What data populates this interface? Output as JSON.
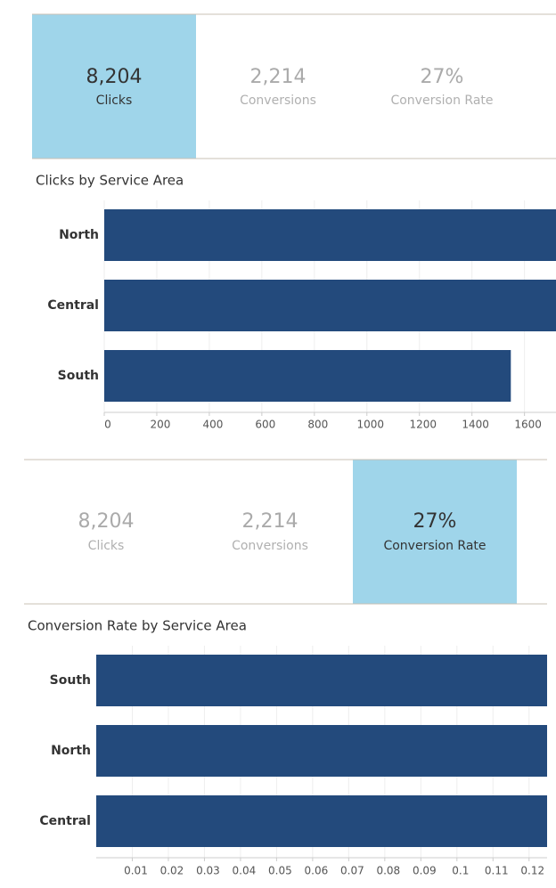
{
  "kpi_panels": [
    {
      "tiles": [
        {
          "value": "8,204",
          "label": "Clicks",
          "selected": true
        },
        {
          "value": "2,214",
          "label": "Conversions",
          "selected": false
        },
        {
          "value": "27%",
          "label": "Conversion Rate",
          "selected": false
        }
      ]
    },
    {
      "tiles": [
        {
          "value": "8,204",
          "label": "Clicks",
          "selected": false
        },
        {
          "value": "2,214",
          "label": "Conversions",
          "selected": false
        },
        {
          "value": "27%",
          "label": "Conversion Rate",
          "selected": true
        }
      ]
    }
  ],
  "chart_data": [
    {
      "type": "bar",
      "orientation": "horizontal",
      "title": "Clicks by Service Area",
      "categories": [
        "North",
        "Central",
        "South"
      ],
      "values": [
        1780,
        1760,
        1548
      ],
      "color": "#234a7c",
      "xlim": [
        0,
        1720
      ],
      "xticks": [
        0,
        200,
        400,
        600,
        800,
        1000,
        1200,
        1400,
        1600
      ],
      "grid": true
    },
    {
      "type": "bar",
      "orientation": "horizontal",
      "title": "Conversion Rate by Service Area",
      "categories": [
        "South",
        "North",
        "Central"
      ],
      "values": [
        0.13,
        0.13,
        0.13
      ],
      "color": "#234a7c",
      "xlim": [
        0,
        0.125
      ],
      "xticks": [
        0.01,
        0.02,
        0.03,
        0.04,
        0.05,
        0.06,
        0.07,
        0.08,
        0.09,
        0.1,
        0.11,
        0.12
      ],
      "grid": true
    }
  ]
}
